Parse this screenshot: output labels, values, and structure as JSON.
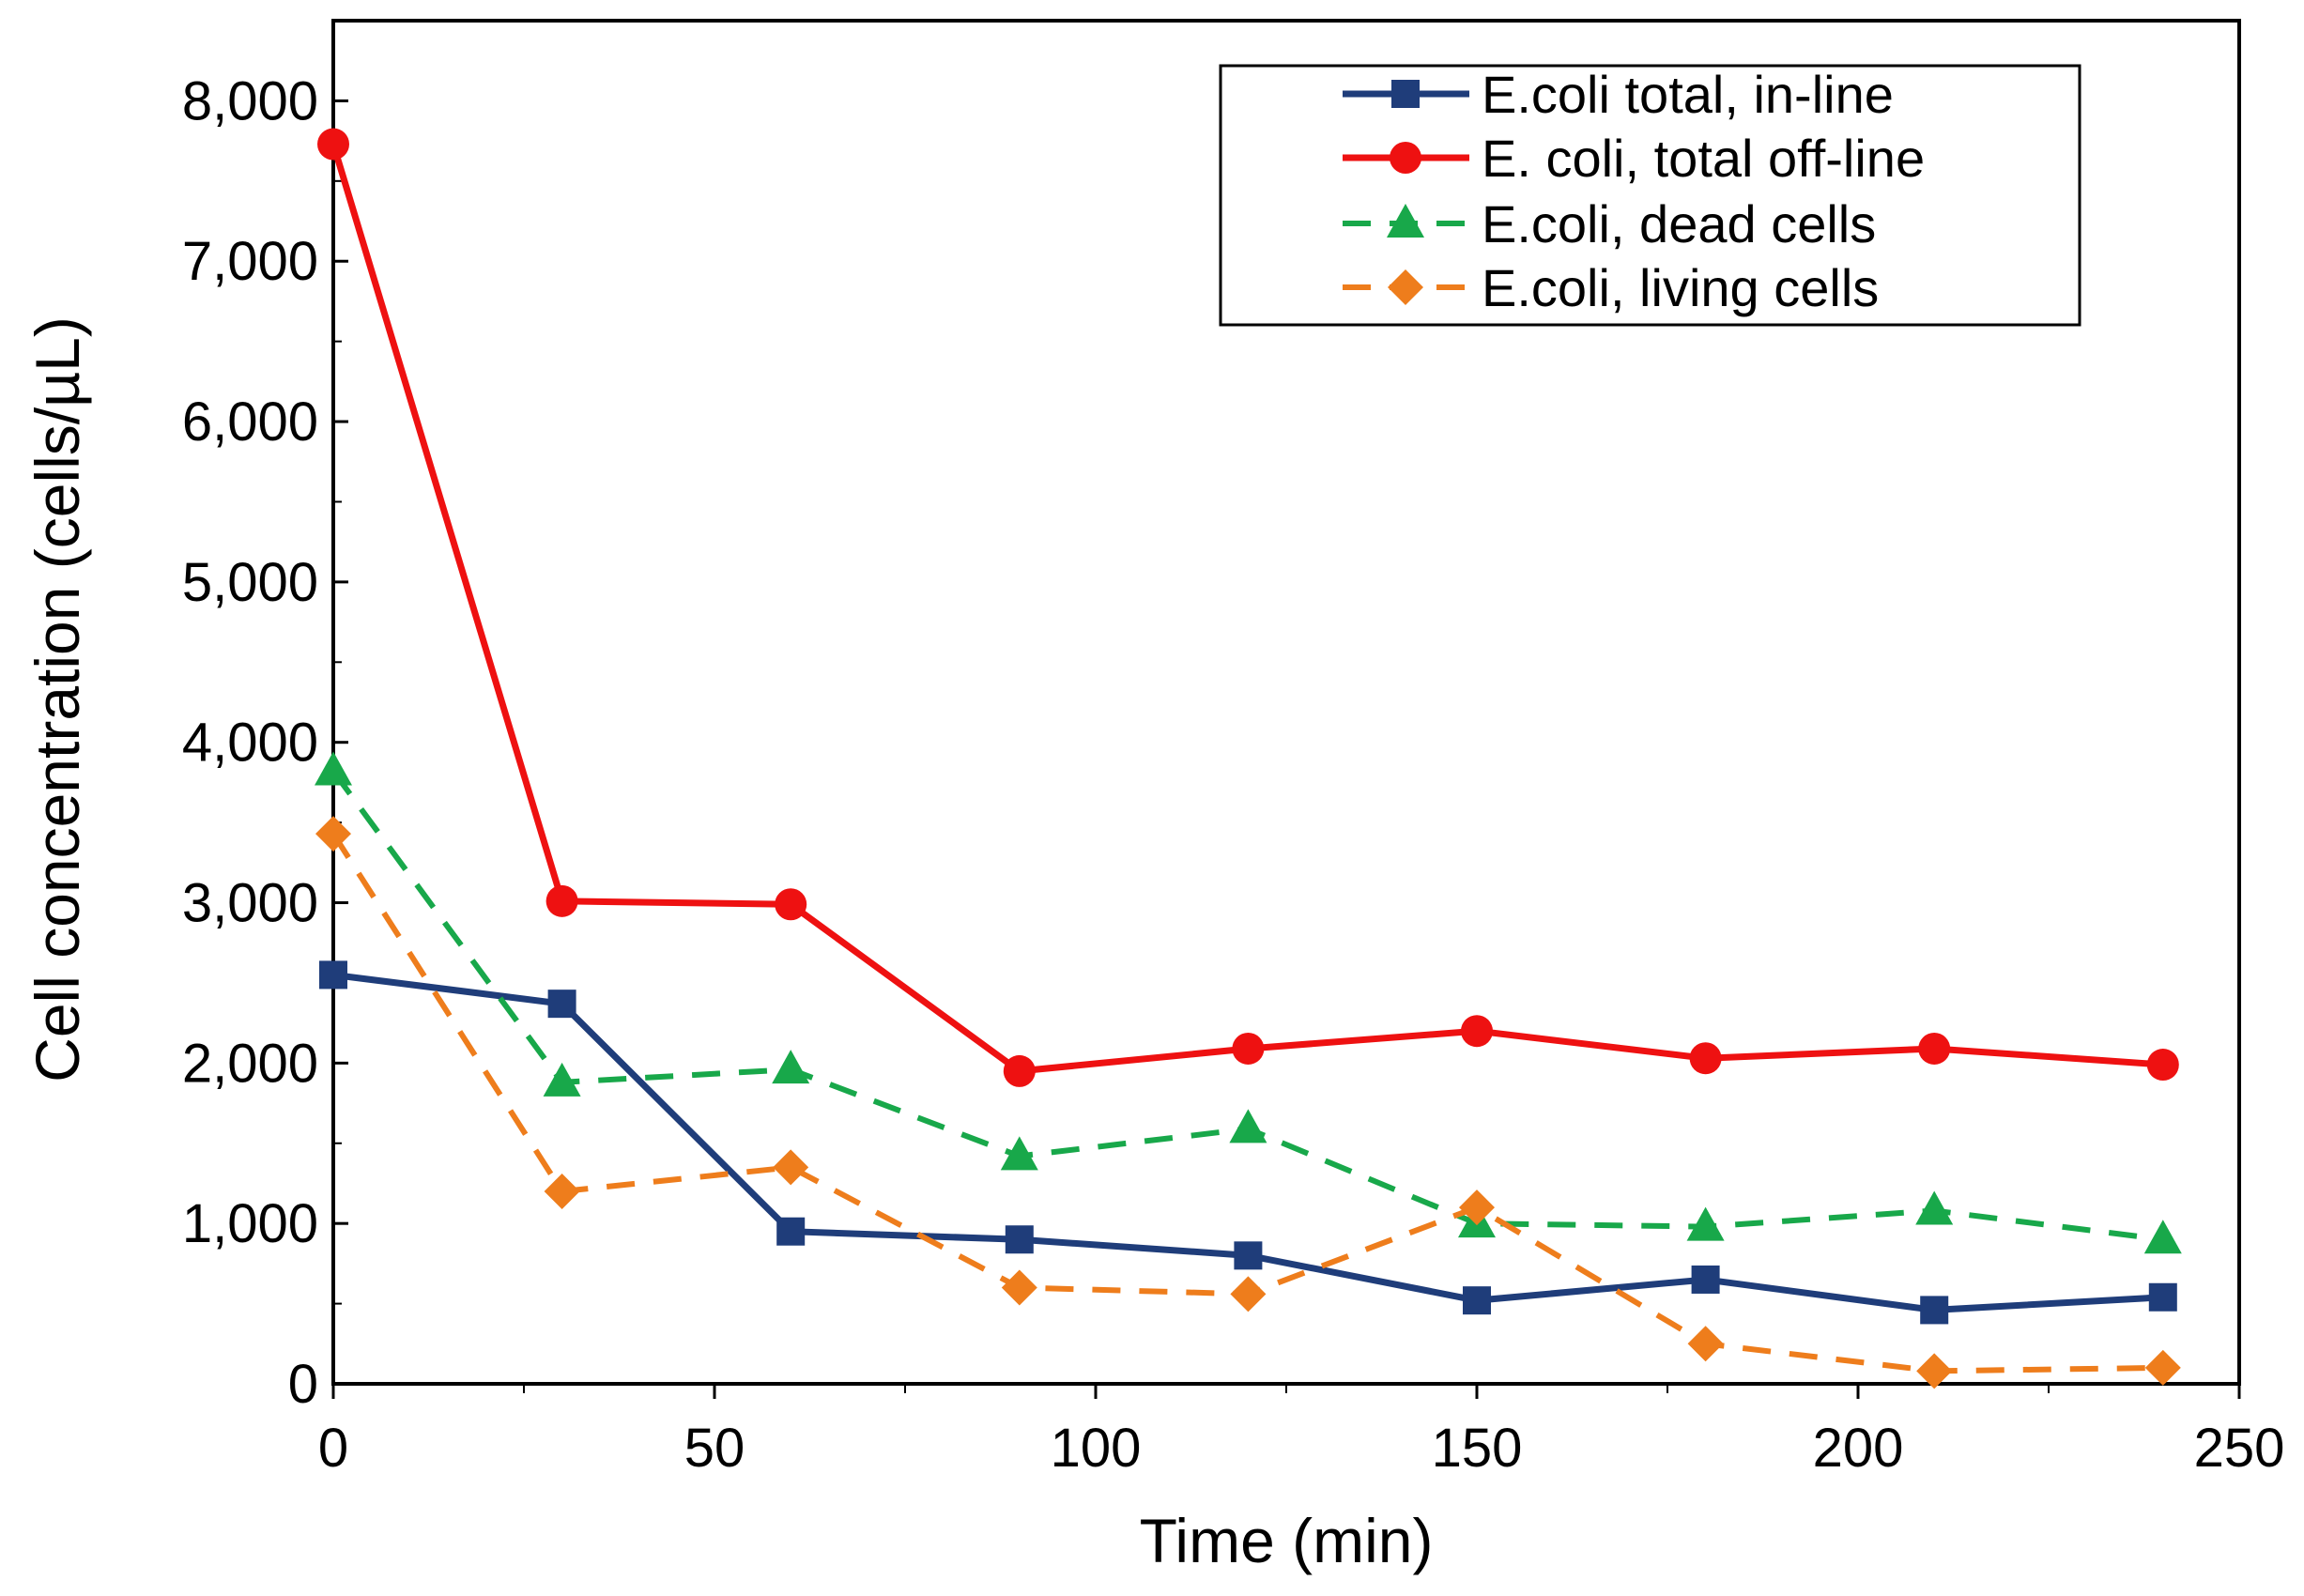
{
  "chart_data": {
    "type": "line",
    "title": "",
    "xlabel": "Time (min)",
    "ylabel": "Cell concentration  (cells/µL)",
    "xlim": [
      0,
      250
    ],
    "ylim": [
      0,
      8500
    ],
    "xticks": [
      0,
      50,
      100,
      150,
      200,
      250
    ],
    "xtick_labels": [
      "0",
      "50",
      "100",
      "150",
      "200",
      "250"
    ],
    "yticks": [
      0,
      1000,
      2000,
      3000,
      4000,
      5000,
      6000,
      7000,
      8000
    ],
    "ytick_labels": [
      "0",
      "1,000",
      "2,000",
      "3,000",
      "4,000",
      "5,000",
      "6,000",
      "7,000",
      "8,000"
    ],
    "grid": false,
    "legend_position": "top-right",
    "x": [
      0,
      30,
      60,
      90,
      120,
      150,
      180,
      210,
      240
    ],
    "series": [
      {
        "name": "E.coli total, in-line",
        "color": "#1f3d7a",
        "marker": "square",
        "dashed": false,
        "values": [
          2550,
          2370,
          950,
          900,
          800,
          520,
          650,
          460,
          540
        ]
      },
      {
        "name": "E. coli, total off-line",
        "color": "#ee1111",
        "marker": "circle",
        "dashed": false,
        "values": [
          7730,
          3010,
          2990,
          1950,
          2090,
          2200,
          2030,
          2090,
          1990
        ]
      },
      {
        "name": "E.coli, dead cells",
        "color": "#18a84a",
        "marker": "triangle",
        "dashed": true,
        "values": [
          3820,
          1880,
          1960,
          1420,
          1590,
          1000,
          980,
          1080,
          900
        ]
      },
      {
        "name": "E.coli, living cells",
        "color": "#ee7d1c",
        "marker": "diamond",
        "dashed": true,
        "values": [
          3430,
          1200,
          1350,
          600,
          560,
          1100,
          250,
          80,
          100
        ]
      }
    ]
  }
}
